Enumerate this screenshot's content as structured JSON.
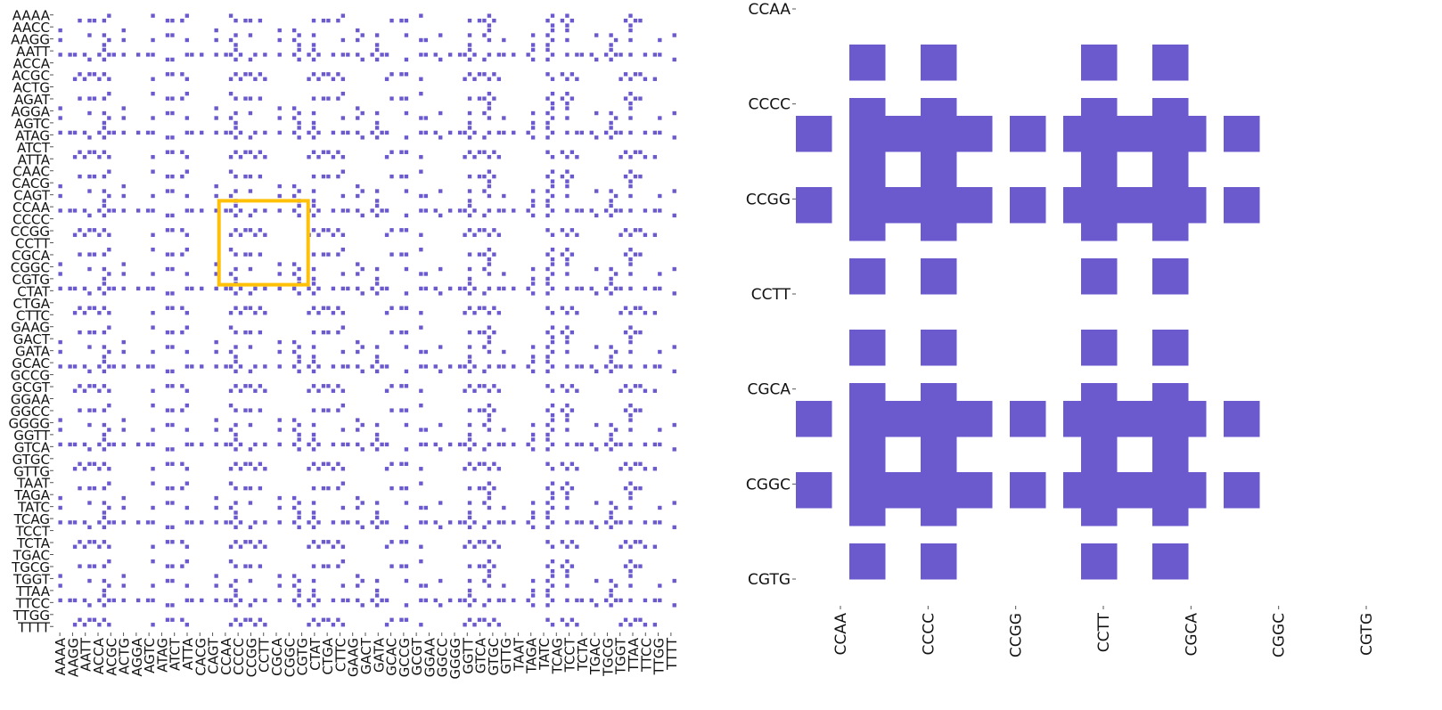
{
  "colors": {
    "cell": "#6a5acd",
    "highlight": "#ffc107",
    "tick": "#555555",
    "label": "#111111"
  },
  "chart_data": [
    {
      "type": "heatmap",
      "panel": "full-matrix",
      "grid": false,
      "y_tick_labels": [
        "AAAA",
        "AACC",
        "AAGG",
        "AATT",
        "ACCA",
        "ACGC",
        "ACTG",
        "AGAT",
        "AGGA",
        "AGTC",
        "ATAG",
        "ATCT",
        "ATTA",
        "CAAC",
        "CACG",
        "CAGT",
        "CCAA",
        "CCCC",
        "CCGG",
        "CCTT",
        "CGCA",
        "CGGC",
        "CGTG",
        "CTAT",
        "CTGA",
        "CTTC",
        "GAAG",
        "GACT",
        "GATA",
        "GCAC",
        "GCCG",
        "GCGT",
        "GGAA",
        "GGCC",
        "GGGG",
        "GGTT",
        "GTCA",
        "GTGC",
        "GTTG",
        "TAAT",
        "TAGA",
        "TATC",
        "TCAG",
        "TCCT",
        "TCTA",
        "TGAC",
        "TGCG",
        "TGGT",
        "TTAA",
        "TTCC",
        "TTGG",
        "TTTT"
      ],
      "x_tick_labels": [
        "AAAA",
        "AAGG",
        "AATT",
        "ACCA",
        "ACGC",
        "ACTG",
        "AGGA",
        "AGTC",
        "ATAG",
        "ATCT",
        "ATTA",
        "CACG",
        "CAGT",
        "CCAA",
        "CCCC",
        "CCGG",
        "CCTT",
        "CGCA",
        "CGGC",
        "CGTG",
        "CTAT",
        "CTGA",
        "CTTC",
        "GAAG",
        "GACT",
        "GATA",
        "GCAC",
        "GCCG",
        "GCGT",
        "GGAA",
        "GGCC",
        "GGGG",
        "GGTT",
        "GTCA",
        "GTGC",
        "GTTG",
        "TAAT",
        "TAGA",
        "TATC",
        "TCAG",
        "TCCT",
        "TCTA",
        "TGAC",
        "TGCG",
        "TGGT",
        "TTAA",
        "TTCC",
        "TTGG",
        "TTTT"
      ],
      "highlight_region": {
        "rows": [
          "CCAA",
          "CGTG"
        ],
        "cols": [
          "CCAA",
          "CGTG"
        ]
      }
    },
    {
      "type": "heatmap",
      "panel": "zoomed-region",
      "grid": false,
      "y_tick_labels": [
        "CCAA",
        "CCCC",
        "CCGG",
        "CCTT",
        "CGCA",
        "CGGC",
        "CGTG"
      ],
      "x_tick_labels": [
        "CCAA",
        "CCCC",
        "CCGG",
        "CCTT",
        "CGCA",
        "CGGC",
        "CGTG"
      ],
      "cell_pattern_rows": [
        "..........................",
        "..........................",
        "...XX..XX.......XX..XX....",
        "...XX..XX.......XX..XX....",
        "..........................",
        "...XX..XX.......XX..XX....",
        "XX.XXXXXXXX.XX.XXXXXXXX.XX",
        "XX.XXXXXXXX.XX.XXXXXXXX.XX",
        "...XX..XX.......XX..XX....",
        "...XX..XX.......XX..XX....",
        "XX.XXXXXXXX.XX.XXXXXXXX.XX",
        "XX.XXXXXXXX.XX.XXXXXXXX.XX",
        "...XX..XX.......XX..XX....",
        "..........................",
        "...XX..XX.......XX..XX....",
        "...XX..XX.......XX..XX....",
        "..........................",
        "..........................",
        "...XX..XX.......XX..XX....",
        "...XX..XX.......XX..XX....",
        "..........................",
        "...XX..XX.......XX..XX....",
        "XX.XXXXXXXX.XX.XXXXXXXX.XX",
        "XX.XXXXXXXX.XX.XXXXXXXX.XX",
        "...XX..XX.......XX..XX....",
        "...XX..XX.......XX..XX....",
        "XX.XXXXXXXX.XX.XXXXXXXX.XX",
        "XX.XXXXXXXX.XX.XXXXXXXX.XX",
        "...XX..XX.......XX..XX....",
        "..........................",
        "...XX..XX.......XX..XX....",
        "...XX..XX.......XX..XX...."
      ]
    }
  ]
}
